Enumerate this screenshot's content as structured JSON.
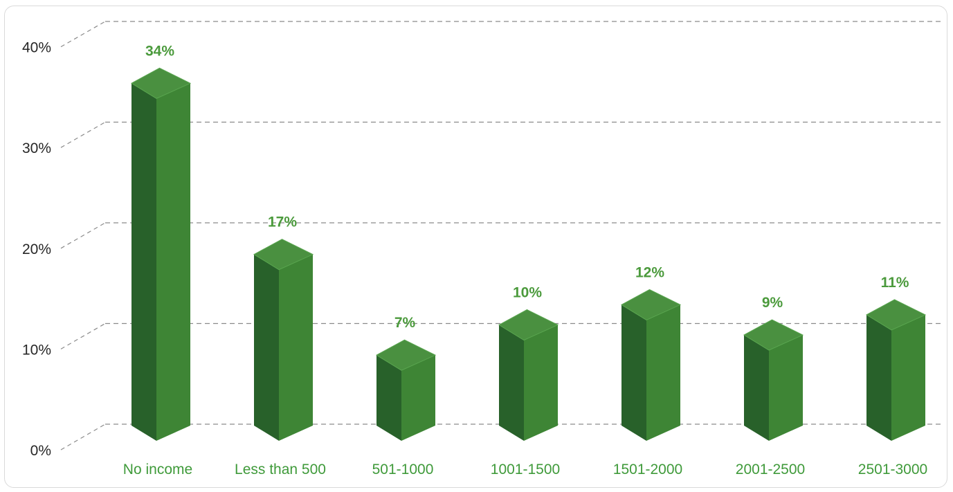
{
  "chart_data": {
    "type": "bar",
    "title": "",
    "xlabel": "",
    "ylabel": "",
    "categories": [
      "No income",
      "Less than 500",
      "501-1000",
      "1001-1500",
      "1501-2000",
      "2001-2500",
      "2501-3000"
    ],
    "values": [
      34,
      17,
      7,
      10,
      12,
      9,
      11
    ],
    "value_labels": [
      "34%",
      "17%",
      "7%",
      "10%",
      "12%",
      "9%",
      "11%"
    ],
    "ylim": [
      0,
      40
    ],
    "yticks": [
      0,
      10,
      20,
      30,
      40
    ],
    "ytick_labels": [
      "0%",
      "10%",
      "20%",
      "30%",
      "40%"
    ],
    "grid": true,
    "style": "3d-column",
    "colors": {
      "bar_front": "#3e8535",
      "bar_side": "#28612a",
      "bar_top": "#4a9040",
      "category_text": "#3f9a3a",
      "value_text": "#4b9a3c"
    }
  }
}
